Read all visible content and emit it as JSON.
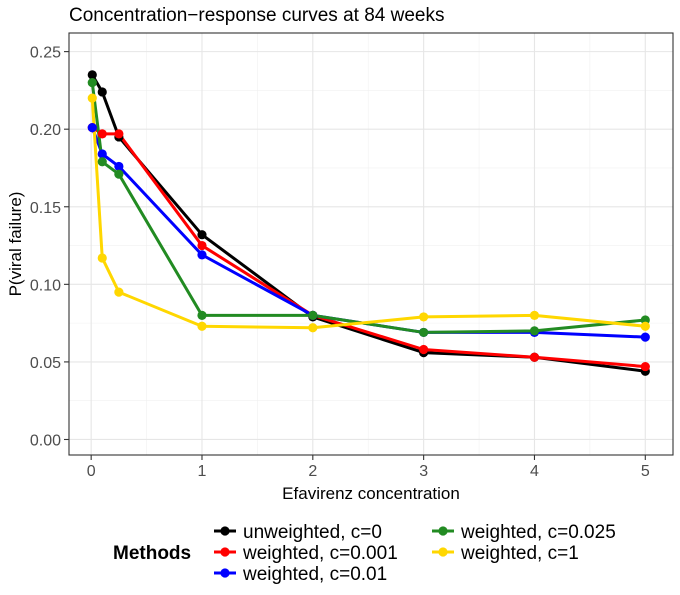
{
  "chart_data": {
    "type": "line",
    "title": "Concentration−response curves at 84 weeks",
    "xlabel": "Efavirenz concentration",
    "ylabel": "P(viral failure)",
    "xlim": [
      -0.2,
      5.25
    ],
    "ylim": [
      -0.01,
      0.262
    ],
    "x_ticks": [
      0,
      1,
      2,
      3,
      4,
      5
    ],
    "x_tick_labels": [
      "0",
      "1",
      "2",
      "3",
      "4",
      "5"
    ],
    "y_ticks": [
      0.0,
      0.05,
      0.1,
      0.15,
      0.2,
      0.25
    ],
    "y_tick_labels": [
      "0.00",
      "0.05",
      "0.10",
      "0.15",
      "0.20",
      "0.25"
    ],
    "grid": true,
    "legend_title": "Methods",
    "legend_position": "bottom",
    "series": [
      {
        "name": "unweighted, c=0",
        "color": "#000000",
        "x": [
          0.01,
          0.1,
          0.25,
          1,
          2,
          3,
          4,
          5
        ],
        "y": [
          0.235,
          0.224,
          0.195,
          0.132,
          0.079,
          0.056,
          0.053,
          0.044
        ]
      },
      {
        "name": "weighted, c=0.001",
        "color": "#ff0000",
        "x": [
          0.01,
          0.1,
          0.25,
          1,
          2,
          3,
          4,
          5
        ],
        "y": [
          0.201,
          0.197,
          0.197,
          0.125,
          0.08,
          0.058,
          0.053,
          0.047
        ]
      },
      {
        "name": "weighted, c=0.01",
        "color": "#0000ff",
        "x": [
          0.01,
          0.1,
          0.25,
          1,
          2,
          3,
          4,
          5
        ],
        "y": [
          0.201,
          0.184,
          0.176,
          0.119,
          0.08,
          0.069,
          0.069,
          0.066
        ]
      },
      {
        "name": "weighted, c=0.025",
        "color": "#228b22",
        "x": [
          0.01,
          0.1,
          0.25,
          1,
          2,
          3,
          4,
          5
        ],
        "y": [
          0.23,
          0.179,
          0.171,
          0.08,
          0.08,
          0.069,
          0.07,
          0.077
        ]
      },
      {
        "name": "weighted, c=1",
        "color": "#ffd700",
        "x": [
          0.01,
          0.1,
          0.25,
          1,
          2,
          3,
          4,
          5
        ],
        "y": [
          0.22,
          0.117,
          0.095,
          0.073,
          0.072,
          0.079,
          0.08,
          0.073
        ]
      }
    ]
  }
}
